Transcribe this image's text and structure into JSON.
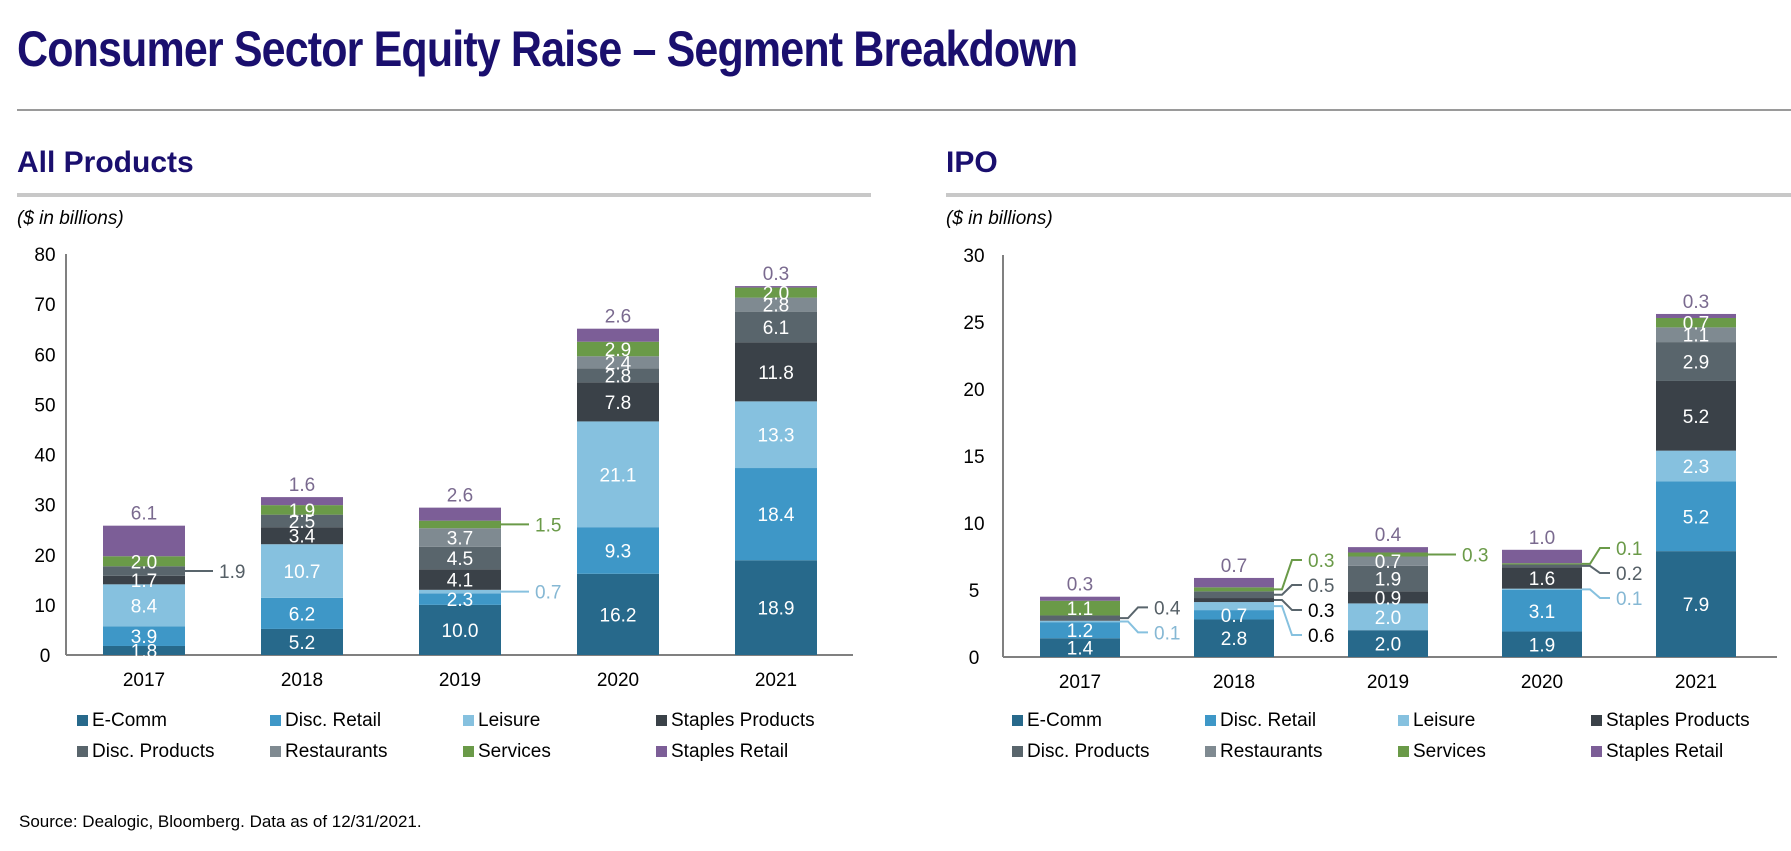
{
  "page": {
    "title": "Consumer Sector Equity Raise – Segment Breakdown",
    "source": "Source: Dealogic, Bloomberg. Data as of 12/31/2021."
  },
  "segments": [
    {
      "name": "E-Comm",
      "color": "#27698b"
    },
    {
      "name": "Disc. Retail",
      "color": "#3e97c7"
    },
    {
      "name": "Leisure",
      "color": "#86c1df"
    },
    {
      "name": "Staples Products",
      "color": "#3a4148"
    },
    {
      "name": "Disc. Products",
      "color": "#59656c"
    },
    {
      "name": "Restaurants",
      "color": "#7f8a91"
    },
    {
      "name": "Services",
      "color": "#6a9a48"
    },
    {
      "name": "Staples Retail",
      "color": "#7c5e97"
    }
  ],
  "panels": [
    {
      "title": "All Products",
      "units": "($ in billions)"
    },
    {
      "title": "IPO",
      "units": "($ in billions)"
    }
  ],
  "chart_data": [
    {
      "type": "bar",
      "stacked": true,
      "title": "All Products",
      "ylabel": "($ in billions)",
      "xlabel": "",
      "categories": [
        "2017",
        "2018",
        "2019",
        "2020",
        "2021"
      ],
      "ylim": [
        0,
        80
      ],
      "yticks": [
        0,
        10,
        20,
        30,
        40,
        50,
        60,
        70,
        80
      ],
      "grid": false,
      "legend": "bottom",
      "series": [
        {
          "name": "E-Comm",
          "values": [
            1.8,
            5.2,
            10.0,
            16.2,
            18.9
          ]
        },
        {
          "name": "Disc. Retail",
          "values": [
            3.9,
            6.2,
            2.3,
            9.3,
            18.4
          ]
        },
        {
          "name": "Leisure",
          "values": [
            8.4,
            10.7,
            0.7,
            21.1,
            13.3
          ]
        },
        {
          "name": "Staples Products",
          "values": [
            1.7,
            3.4,
            4.1,
            7.8,
            11.8
          ]
        },
        {
          "name": "Disc. Products",
          "values": [
            1.9,
            2.5,
            4.5,
            2.8,
            6.1
          ]
        },
        {
          "name": "Restaurants",
          "values": [
            0,
            0,
            3.7,
            2.4,
            2.8
          ]
        },
        {
          "name": "Services",
          "values": [
            2.0,
            1.9,
            1.5,
            2.9,
            2.0
          ]
        },
        {
          "name": "Staples Retail",
          "values": [
            6.1,
            1.6,
            2.6,
            2.6,
            0.3
          ]
        }
      ],
      "callouts": [
        {
          "category": "2017",
          "series": "Disc. Products",
          "label": "1.9"
        },
        {
          "category": "2019",
          "series": "Leisure",
          "label": "0.7"
        },
        {
          "category": "2019",
          "series": "Services",
          "label": "1.5"
        }
      ]
    },
    {
      "type": "bar",
      "stacked": true,
      "title": "IPO",
      "ylabel": "($ in billions)",
      "xlabel": "",
      "categories": [
        "2017",
        "2018",
        "2019",
        "2020",
        "2021"
      ],
      "ylim": [
        0,
        30
      ],
      "yticks": [
        0,
        5,
        10,
        15,
        20,
        25,
        30
      ],
      "grid": false,
      "legend": "bottom",
      "series": [
        {
          "name": "E-Comm",
          "values": [
            1.4,
            2.8,
            2.0,
            1.9,
            7.9
          ]
        },
        {
          "name": "Disc. Retail",
          "values": [
            1.2,
            0.7,
            0,
            3.1,
            5.2
          ]
        },
        {
          "name": "Leisure",
          "values": [
            0.1,
            0.6,
            2.0,
            0.1,
            2.3
          ]
        },
        {
          "name": "Staples Products",
          "values": [
            0,
            0.3,
            0.9,
            1.6,
            5.2
          ]
        },
        {
          "name": "Disc. Products",
          "values": [
            0.4,
            0.5,
            1.9,
            0.2,
            2.9
          ]
        },
        {
          "name": "Restaurants",
          "values": [
            0,
            0,
            0.7,
            0,
            1.1
          ]
        },
        {
          "name": "Services",
          "values": [
            1.1,
            0.3,
            0.3,
            0.1,
            0.7
          ]
        },
        {
          "name": "Staples Retail",
          "values": [
            0.3,
            0.7,
            0.4,
            1.0,
            0.3
          ]
        }
      ],
      "callouts": [
        {
          "category": "2017",
          "series": "Disc. Products",
          "label": "0.4"
        },
        {
          "category": "2017",
          "series": "Leisure",
          "label": "0.1"
        },
        {
          "category": "2018",
          "series": "Services",
          "label": "0.3"
        },
        {
          "category": "2018",
          "series": "Disc. Products",
          "label": "0.5"
        },
        {
          "category": "2018",
          "series": "Staples Products",
          "label": "0.3"
        },
        {
          "category": "2018",
          "series": "Leisure",
          "label": "0.6"
        },
        {
          "category": "2019",
          "series": "Services",
          "label": "0.3"
        },
        {
          "category": "2020",
          "series": "Services",
          "label": "0.1"
        },
        {
          "category": "2020",
          "series": "Disc. Products",
          "label": "0.2"
        },
        {
          "category": "2020",
          "series": "Leisure",
          "label": "0.1"
        }
      ]
    }
  ]
}
